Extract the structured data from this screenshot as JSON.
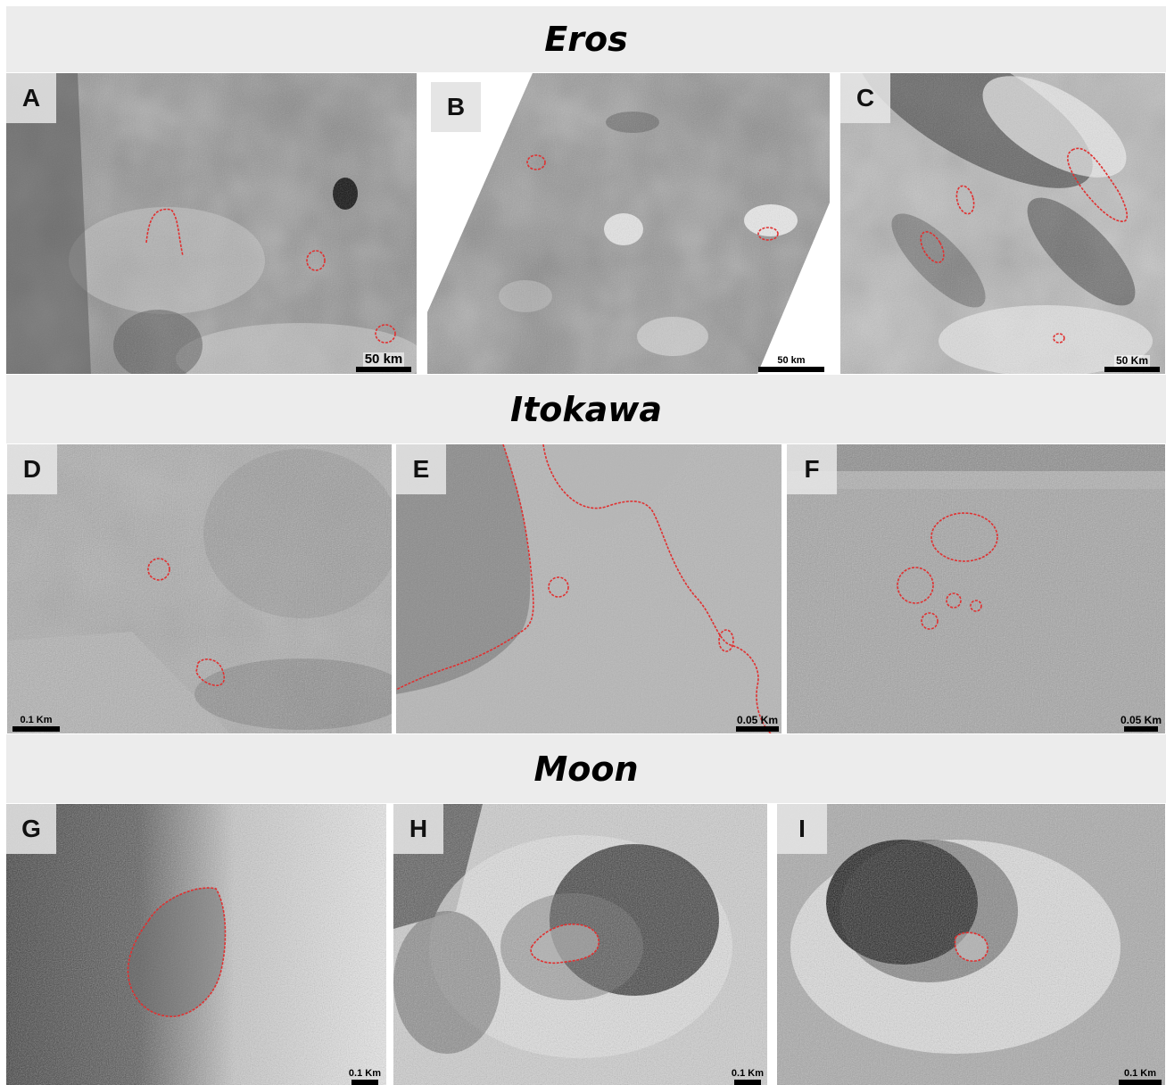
{
  "sections": {
    "eros": "Eros",
    "itokawa": "Itokawa",
    "moon": "Moon"
  },
  "panels": {
    "A": {
      "letter": "A",
      "scale": "50 km"
    },
    "B": {
      "letter": "B",
      "scale": "50 km"
    },
    "C": {
      "letter": "C",
      "scale": "50 Km"
    },
    "D": {
      "letter": "D",
      "scale": "0.1 Km"
    },
    "E": {
      "letter": "E",
      "scale": "0.05 Km"
    },
    "F": {
      "letter": "F",
      "scale": "0.05 Km"
    },
    "G": {
      "letter": "G",
      "scale": "0.1 Km"
    },
    "H": {
      "letter": "H",
      "scale": "0.1 Km"
    },
    "I": {
      "letter": "I",
      "scale": "0.1 Km"
    }
  },
  "colors": {
    "outline": "#e03030",
    "band": "#ececec"
  }
}
